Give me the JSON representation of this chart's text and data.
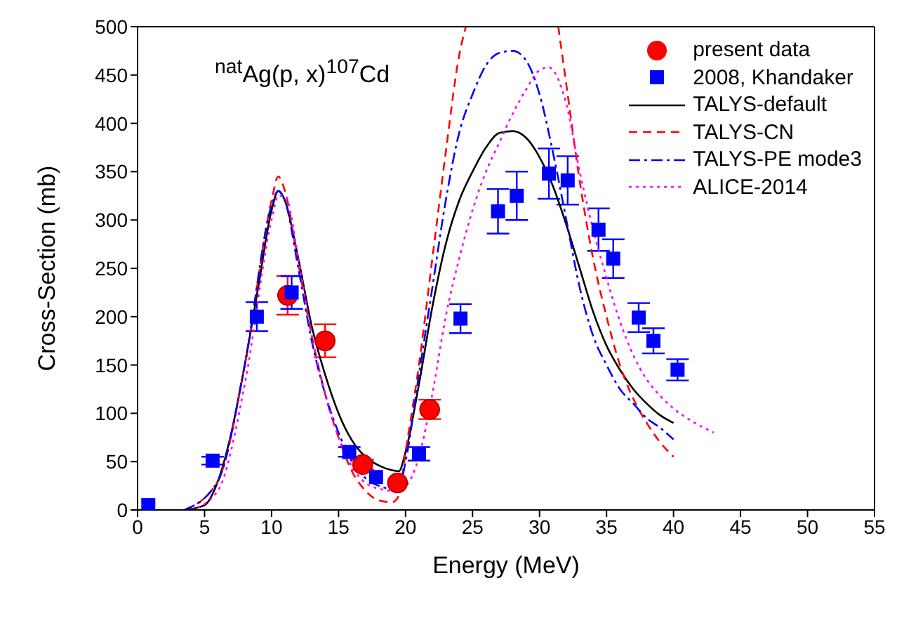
{
  "chart_data": {
    "type": "line",
    "xlabel": "Energy (MeV)",
    "ylabel": "Cross-Section (mb)",
    "annotations": [
      "$^{nat}$Ag(p, x)$^{107}$Cd"
    ],
    "xlim": [
      0,
      55
    ],
    "xticks": [
      0,
      5,
      10,
      15,
      20,
      25,
      30,
      35,
      40,
      45,
      50,
      55
    ],
    "ylim": [
      0,
      500
    ],
    "yticks": [
      0,
      50,
      100,
      150,
      200,
      250,
      300,
      350,
      400,
      450,
      500
    ],
    "legend": "top right",
    "series": [
      {
        "name": "present data",
        "type": "scatter",
        "marker": "circle",
        "color": "#ff0000",
        "x": [
          11.2,
          14,
          16.8,
          19.4,
          21.8
        ],
        "values": [
          222,
          175,
          47,
          28,
          104
        ],
        "errors": [
          20,
          17,
          5,
          null,
          10
        ]
      },
      {
        "name": "2008, Khandaker",
        "type": "scatter",
        "marker": "square",
        "color": "#0000ff",
        "x": [
          0.8,
          5.6,
          8.9,
          11.5,
          15.8,
          17.8,
          21,
          24.1,
          26.9,
          28.3,
          30.7,
          32.1,
          34.4,
          35.5,
          37.4,
          38.5,
          40.3
        ],
        "values": [
          5,
          51,
          200,
          225,
          60,
          34,
          58,
          198,
          309,
          325,
          348,
          341,
          290,
          260,
          199,
          175,
          145
        ],
        "errors": [
          null,
          4,
          15,
          17,
          5,
          null,
          7,
          15,
          23,
          25,
          26,
          25,
          22,
          20,
          15,
          13,
          11
        ]
      },
      {
        "name": "TALYS-default",
        "line_style": "solid",
        "color": "#000000",
        "x": [
          3.5,
          5,
          6,
          7,
          8,
          9,
          10,
          10.5,
          11,
          12,
          13,
          14,
          15,
          16,
          17,
          18,
          19,
          19.5,
          20,
          21,
          22,
          23,
          24,
          25,
          26,
          27,
          28,
          29,
          30,
          31,
          32,
          33,
          34,
          35,
          36,
          37,
          38,
          39,
          40
        ],
        "values": [
          0,
          5,
          30,
          80,
          150,
          230,
          310,
          330,
          320,
          260,
          190,
          140,
          100,
          72,
          55,
          46,
          41,
          40,
          60,
          130,
          210,
          275,
          320,
          350,
          375,
          390,
          392,
          385,
          365,
          335,
          295,
          250,
          205,
          170,
          145,
          125,
          110,
          98,
          90
        ]
      },
      {
        "name": "TALYS-CN",
        "type": "line",
        "line_style": "dashed",
        "color": "#ff0000",
        "x": [
          3.5,
          6,
          8,
          10,
          10.5,
          11,
          12,
          13,
          14,
          15,
          16,
          17,
          18,
          19,
          19.5,
          20,
          21,
          22,
          23,
          24,
          24.5,
          28,
          31.4,
          32,
          33,
          34,
          35,
          36,
          37,
          38,
          39,
          40
        ],
        "values": [
          0,
          30,
          150,
          320,
          345,
          330,
          255,
          180,
          120,
          75,
          40,
          20,
          10,
          8,
          15,
          60,
          150,
          260,
          370,
          470,
          500,
          null,
          500,
          440,
          340,
          260,
          200,
          150,
          115,
          90,
          70,
          55
        ]
      },
      {
        "name": "TALYS-PE mode3",
        "type": "line",
        "line_style": "dashdot",
        "color": "#0000ff",
        "x": [
          3.5,
          6,
          8,
          10,
          10.5,
          11,
          12,
          13,
          14,
          15,
          16,
          17,
          18,
          19,
          19.5,
          20,
          21,
          22,
          23,
          24,
          25,
          26,
          27,
          28,
          29,
          30,
          31,
          32,
          33,
          34,
          35,
          36,
          37,
          38,
          39,
          40
        ],
        "values": [
          0,
          30,
          150,
          315,
          330,
          320,
          250,
          175,
          120,
          80,
          50,
          33,
          25,
          22,
          23,
          50,
          140,
          230,
          320,
          390,
          430,
          460,
          473,
          475,
          465,
          430,
          370,
          300,
          230,
          180,
          150,
          125,
          110,
          95,
          85,
          73
        ]
      },
      {
        "name": "ALICE-2014",
        "type": "line",
        "line_style": "dotted",
        "color": "#ff00ff",
        "x": [
          4,
          6,
          8,
          10,
          10.5,
          11,
          12,
          13,
          14,
          15,
          16,
          17,
          18,
          19,
          20,
          21,
          22,
          23,
          24,
          25,
          26,
          27,
          28,
          29,
          30,
          30.7,
          31,
          32,
          33,
          34,
          35,
          36,
          37,
          38,
          39,
          40,
          41,
          42,
          43
        ],
        "values": [
          0,
          20,
          130,
          300,
          325,
          325,
          260,
          180,
          120,
          75,
          45,
          28,
          22,
          20,
          25,
          55,
          120,
          200,
          260,
          310,
          350,
          380,
          410,
          435,
          455,
          458,
          455,
          420,
          350,
          290,
          240,
          195,
          160,
          135,
          118,
          105,
          95,
          87,
          80
        ]
      }
    ]
  }
}
